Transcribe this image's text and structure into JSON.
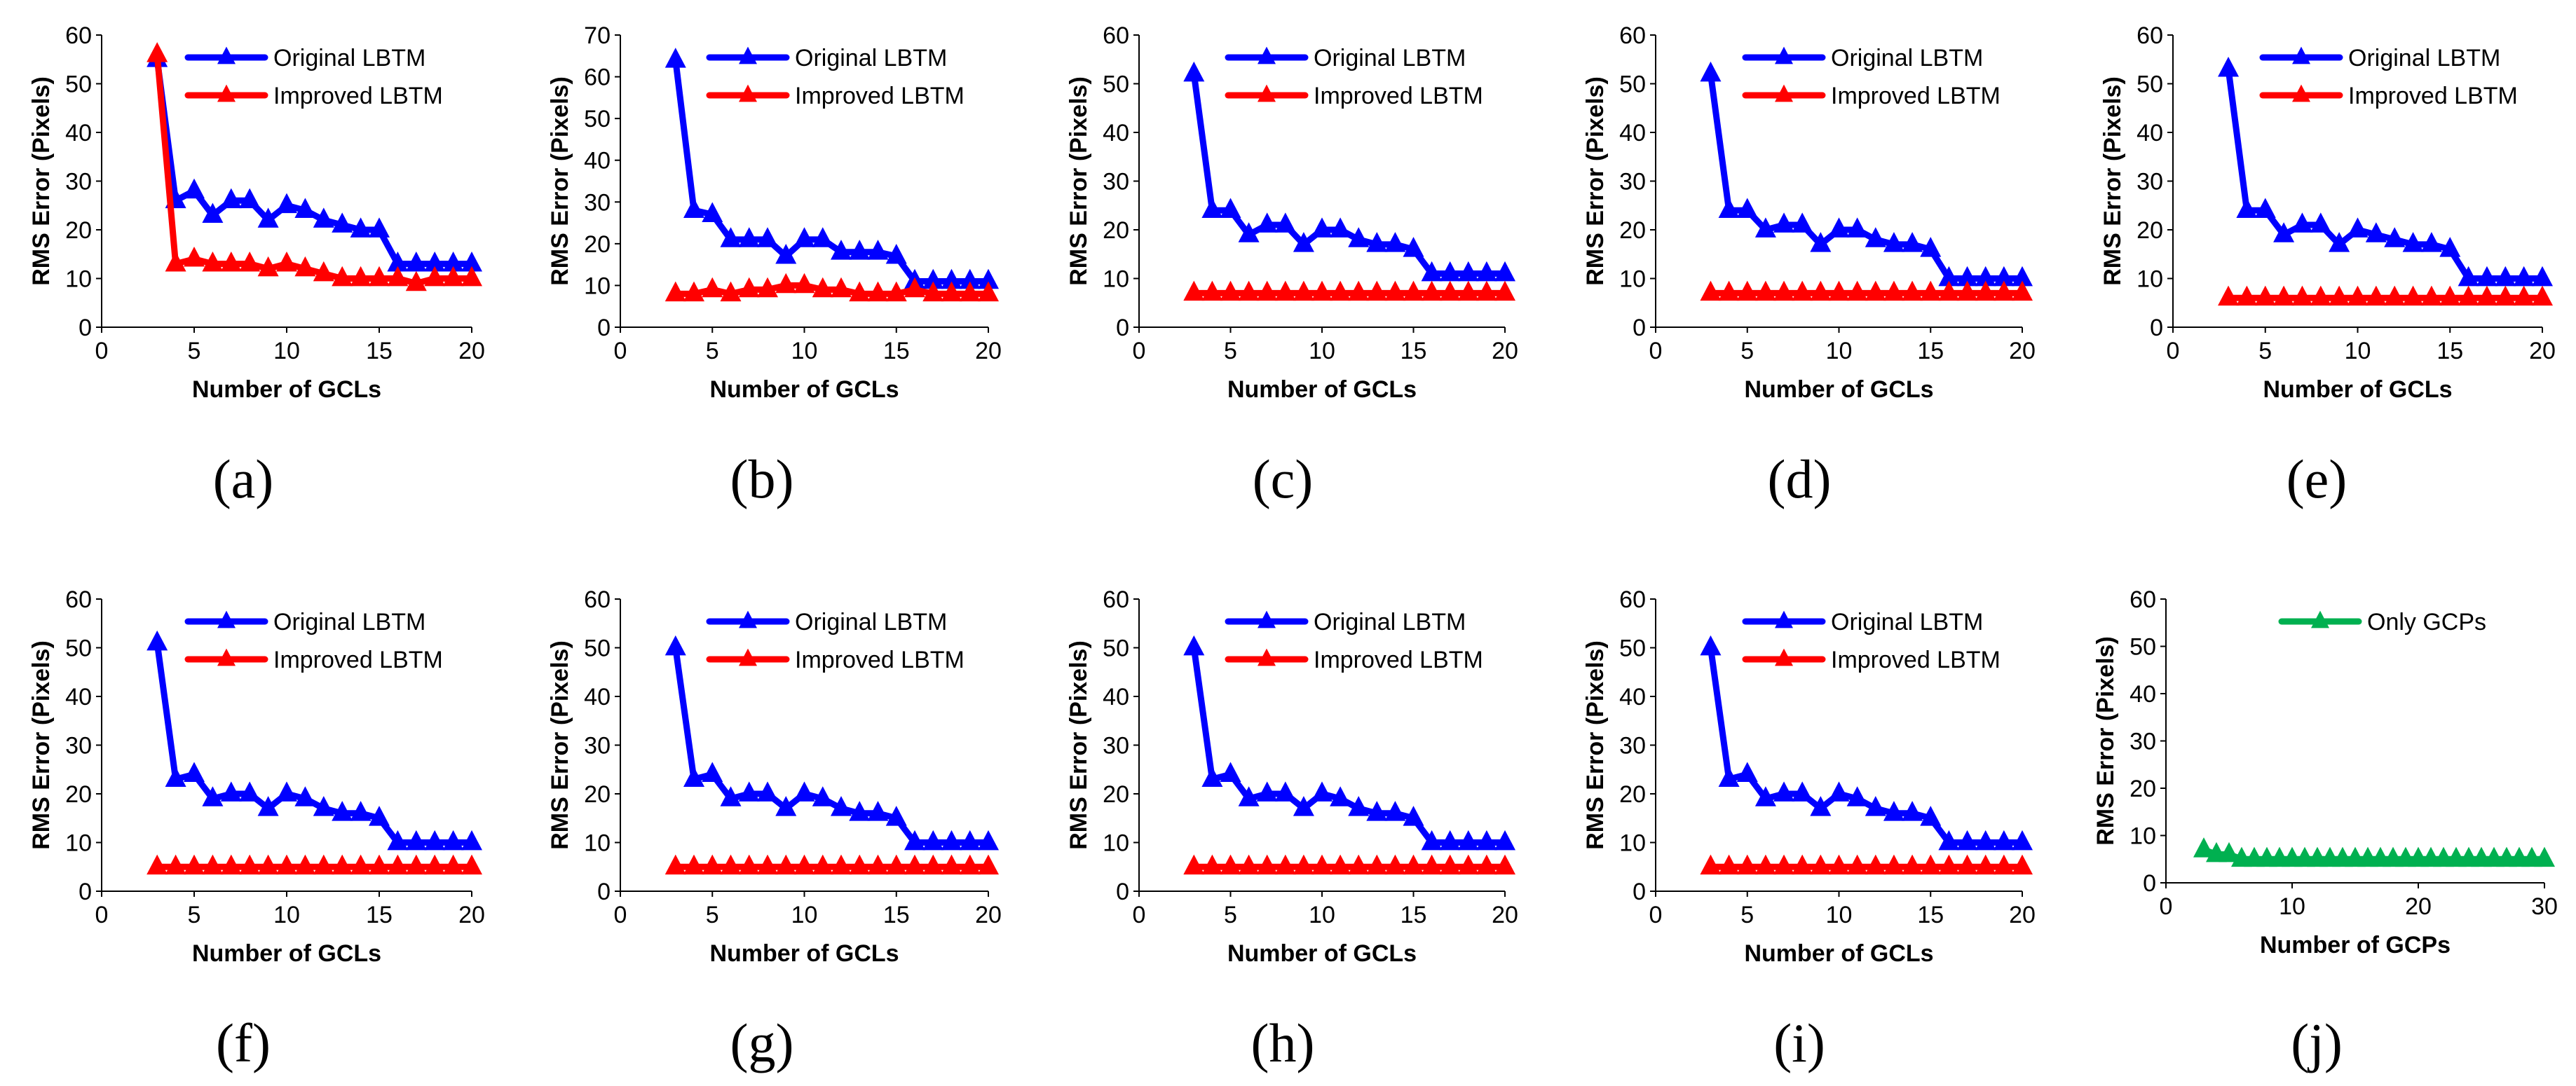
{
  "chart_data": [
    {
      "type": "line",
      "caption": "(a)",
      "xlabel": "Number of GCLs",
      "ylabel": "RMS Error (Pixels)",
      "xlim": [
        0,
        20
      ],
      "xticks": [
        0,
        5,
        10,
        15,
        20
      ],
      "ylim": [
        0,
        60
      ],
      "yticks": [
        0,
        10,
        20,
        30,
        40,
        50,
        60
      ],
      "legend_position": "top-right",
      "series": [
        {
          "name": "Original LBTM",
          "color": "#0000ff",
          "x": [
            3,
            4,
            5,
            6,
            7,
            8,
            9,
            10,
            11,
            12,
            13,
            14,
            15,
            16,
            17,
            18,
            19,
            20
          ],
          "y": [
            55,
            26,
            28,
            23,
            26,
            26,
            22,
            25,
            24,
            22,
            21,
            20,
            20,
            13,
            13,
            13,
            13,
            13
          ]
        },
        {
          "name": "Improved LBTM",
          "color": "#ff0000",
          "x": [
            3,
            4,
            5,
            6,
            7,
            8,
            9,
            10,
            11,
            12,
            13,
            14,
            15,
            16,
            17,
            18,
            19,
            20
          ],
          "y": [
            56,
            13,
            14,
            13,
            13,
            13,
            12,
            13,
            12,
            11,
            10,
            10,
            10,
            10,
            9,
            10,
            10,
            10
          ]
        }
      ]
    },
    {
      "type": "line",
      "caption": "(b)",
      "xlabel": "Number of GCLs",
      "ylabel": "RMS Error (Pixels)",
      "xlim": [
        0,
        20
      ],
      "xticks": [
        0,
        5,
        10,
        15,
        20
      ],
      "ylim": [
        0,
        70
      ],
      "yticks": [
        0,
        10,
        20,
        30,
        40,
        50,
        60,
        70
      ],
      "legend_position": "top-right",
      "series": [
        {
          "name": "Original LBTM",
          "color": "#0000ff",
          "x": [
            3,
            4,
            5,
            6,
            7,
            8,
            9,
            10,
            11,
            12,
            13,
            14,
            15,
            16,
            17,
            18,
            19,
            20
          ],
          "y": [
            64,
            28,
            27,
            21,
            21,
            21,
            17,
            21,
            21,
            18,
            18,
            18,
            17,
            11,
            11,
            11,
            11,
            11
          ]
        },
        {
          "name": "Improved LBTM",
          "color": "#ff0000",
          "x": [
            3,
            4,
            5,
            6,
            7,
            8,
            9,
            10,
            11,
            12,
            13,
            14,
            15,
            16,
            17,
            18,
            19,
            20
          ],
          "y": [
            8,
            8,
            9,
            8,
            9,
            9,
            10,
            10,
            9,
            9,
            8,
            8,
            8,
            9,
            8,
            8,
            8,
            8
          ]
        }
      ]
    },
    {
      "type": "line",
      "caption": "(c)",
      "xlabel": "Number of GCLs",
      "ylabel": "RMS Error (Pixels)",
      "xlim": [
        0,
        20
      ],
      "xticks": [
        0,
        5,
        10,
        15,
        20
      ],
      "ylim": [
        0,
        60
      ],
      "yticks": [
        0,
        10,
        20,
        30,
        40,
        50,
        60
      ],
      "legend_position": "top-right",
      "series": [
        {
          "name": "Original LBTM",
          "color": "#0000ff",
          "x": [
            3,
            4,
            5,
            6,
            7,
            8,
            9,
            10,
            11,
            12,
            13,
            14,
            15,
            16,
            17,
            18,
            19,
            20
          ],
          "y": [
            52,
            24,
            24,
            19,
            21,
            21,
            17,
            20,
            20,
            18,
            17,
            17,
            16,
            11,
            11,
            11,
            11,
            11
          ]
        },
        {
          "name": "Improved LBTM",
          "color": "#ff0000",
          "x": [
            3,
            4,
            5,
            6,
            7,
            8,
            9,
            10,
            11,
            12,
            13,
            14,
            15,
            16,
            17,
            18,
            19,
            20
          ],
          "y": [
            7,
            7,
            7,
            7,
            7,
            7,
            7,
            7,
            7,
            7,
            7,
            7,
            7,
            7,
            7,
            7,
            7,
            7
          ]
        }
      ]
    },
    {
      "type": "line",
      "caption": "(d)",
      "xlabel": "Number of GCLs",
      "ylabel": "RMS Error (Pixels)",
      "xlim": [
        0,
        20
      ],
      "xticks": [
        0,
        5,
        10,
        15,
        20
      ],
      "ylim": [
        0,
        60
      ],
      "yticks": [
        0,
        10,
        20,
        30,
        40,
        50,
        60
      ],
      "legend_position": "top-right",
      "series": [
        {
          "name": "Original LBTM",
          "color": "#0000ff",
          "x": [
            3,
            4,
            5,
            6,
            7,
            8,
            9,
            10,
            11,
            12,
            13,
            14,
            15,
            16,
            17,
            18,
            19,
            20
          ],
          "y": [
            52,
            24,
            24,
            20,
            21,
            21,
            17,
            20,
            20,
            18,
            17,
            17,
            16,
            10,
            10,
            10,
            10,
            10
          ]
        },
        {
          "name": "Improved LBTM",
          "color": "#ff0000",
          "x": [
            3,
            4,
            5,
            6,
            7,
            8,
            9,
            10,
            11,
            12,
            13,
            14,
            15,
            16,
            17,
            18,
            19,
            20
          ],
          "y": [
            7,
            7,
            7,
            7,
            7,
            7,
            7,
            7,
            7,
            7,
            7,
            7,
            7,
            7,
            7,
            7,
            7,
            7
          ]
        }
      ]
    },
    {
      "type": "line",
      "caption": "(e)",
      "xlabel": "Number of GCLs",
      "ylabel": "RMS Error (Pixels)",
      "xlim": [
        0,
        20
      ],
      "xticks": [
        0,
        5,
        10,
        15,
        20
      ],
      "ylim": [
        0,
        60
      ],
      "yticks": [
        0,
        10,
        20,
        30,
        40,
        50,
        60
      ],
      "legend_position": "top-right",
      "series": [
        {
          "name": "Original LBTM",
          "color": "#0000ff",
          "x": [
            3,
            4,
            5,
            6,
            7,
            8,
            9,
            10,
            11,
            12,
            13,
            14,
            15,
            16,
            17,
            18,
            19,
            20
          ],
          "y": [
            53,
            24,
            24,
            19,
            21,
            21,
            17,
            20,
            19,
            18,
            17,
            17,
            16,
            10,
            10,
            10,
            10,
            10
          ]
        },
        {
          "name": "Improved LBTM",
          "color": "#ff0000",
          "x": [
            3,
            4,
            5,
            6,
            7,
            8,
            9,
            10,
            11,
            12,
            13,
            14,
            15,
            16,
            17,
            18,
            19,
            20
          ],
          "y": [
            6,
            6,
            6,
            6,
            6,
            6,
            6,
            6,
            6,
            6,
            6,
            6,
            6,
            6,
            6,
            6,
            6,
            6
          ]
        }
      ]
    },
    {
      "type": "line",
      "caption": "(f)",
      "xlabel": "Number of GCLs",
      "ylabel": "RMS Error (Pixels)",
      "xlim": [
        0,
        20
      ],
      "xticks": [
        0,
        5,
        10,
        15,
        20
      ],
      "ylim": [
        0,
        60
      ],
      "yticks": [
        0,
        10,
        20,
        30,
        40,
        50,
        60
      ],
      "legend_position": "top-right",
      "series": [
        {
          "name": "Original LBTM",
          "color": "#0000ff",
          "x": [
            3,
            4,
            5,
            6,
            7,
            8,
            9,
            10,
            11,
            12,
            13,
            14,
            15,
            16,
            17,
            18,
            19,
            20
          ],
          "y": [
            51,
            23,
            24,
            19,
            20,
            20,
            17,
            20,
            19,
            17,
            16,
            16,
            15,
            10,
            10,
            10,
            10,
            10
          ]
        },
        {
          "name": "Improved LBTM",
          "color": "#ff0000",
          "x": [
            3,
            4,
            5,
            6,
            7,
            8,
            9,
            10,
            11,
            12,
            13,
            14,
            15,
            16,
            17,
            18,
            19,
            20
          ],
          "y": [
            5,
            5,
            5,
            5,
            5,
            5,
            5,
            5,
            5,
            5,
            5,
            5,
            5,
            5,
            5,
            5,
            5,
            5
          ]
        }
      ]
    },
    {
      "type": "line",
      "caption": "(g)",
      "xlabel": "Number of GCLs",
      "ylabel": "RMS Error (Pixels)",
      "xlim": [
        0,
        20
      ],
      "xticks": [
        0,
        5,
        10,
        15,
        20
      ],
      "ylim": [
        0,
        60
      ],
      "yticks": [
        0,
        10,
        20,
        30,
        40,
        50,
        60
      ],
      "legend_position": "top-right",
      "series": [
        {
          "name": "Original LBTM",
          "color": "#0000ff",
          "x": [
            3,
            4,
            5,
            6,
            7,
            8,
            9,
            10,
            11,
            12,
            13,
            14,
            15,
            16,
            17,
            18,
            19,
            20
          ],
          "y": [
            50,
            23,
            24,
            19,
            20,
            20,
            17,
            20,
            19,
            17,
            16,
            16,
            15,
            10,
            10,
            10,
            10,
            10
          ]
        },
        {
          "name": "Improved LBTM",
          "color": "#ff0000",
          "x": [
            3,
            4,
            5,
            6,
            7,
            8,
            9,
            10,
            11,
            12,
            13,
            14,
            15,
            16,
            17,
            18,
            19,
            20
          ],
          "y": [
            5,
            5,
            5,
            5,
            5,
            5,
            5,
            5,
            5,
            5,
            5,
            5,
            5,
            5,
            5,
            5,
            5,
            5
          ]
        }
      ]
    },
    {
      "type": "line",
      "caption": "(h)",
      "xlabel": "Number of GCLs",
      "ylabel": "RMS Error (Pixels)",
      "xlim": [
        0,
        20
      ],
      "xticks": [
        0,
        5,
        10,
        15,
        20
      ],
      "ylim": [
        0,
        60
      ],
      "yticks": [
        0,
        10,
        20,
        30,
        40,
        50,
        60
      ],
      "legend_position": "top-right",
      "series": [
        {
          "name": "Original LBTM",
          "color": "#0000ff",
          "x": [
            3,
            4,
            5,
            6,
            7,
            8,
            9,
            10,
            11,
            12,
            13,
            14,
            15,
            16,
            17,
            18,
            19,
            20
          ],
          "y": [
            50,
            23,
            24,
            19,
            20,
            20,
            17,
            20,
            19,
            17,
            16,
            16,
            15,
            10,
            10,
            10,
            10,
            10
          ]
        },
        {
          "name": "Improved LBTM",
          "color": "#ff0000",
          "x": [
            3,
            4,
            5,
            6,
            7,
            8,
            9,
            10,
            11,
            12,
            13,
            14,
            15,
            16,
            17,
            18,
            19,
            20
          ],
          "y": [
            5,
            5,
            5,
            5,
            5,
            5,
            5,
            5,
            5,
            5,
            5,
            5,
            5,
            5,
            5,
            5,
            5,
            5
          ]
        }
      ]
    },
    {
      "type": "line",
      "caption": "(i)",
      "xlabel": "Number of GCLs",
      "ylabel": "RMS Error (Pixels)",
      "xlim": [
        0,
        20
      ],
      "xticks": [
        0,
        5,
        10,
        15,
        20
      ],
      "ylim": [
        0,
        60
      ],
      "yticks": [
        0,
        10,
        20,
        30,
        40,
        50,
        60
      ],
      "legend_position": "top-right",
      "series": [
        {
          "name": "Original LBTM",
          "color": "#0000ff",
          "x": [
            3,
            4,
            5,
            6,
            7,
            8,
            9,
            10,
            11,
            12,
            13,
            14,
            15,
            16,
            17,
            18,
            19,
            20
          ],
          "y": [
            50,
            23,
            24,
            19,
            20,
            20,
            17,
            20,
            19,
            17,
            16,
            16,
            15,
            10,
            10,
            10,
            10,
            10
          ]
        },
        {
          "name": "Improved LBTM",
          "color": "#ff0000",
          "x": [
            3,
            4,
            5,
            6,
            7,
            8,
            9,
            10,
            11,
            12,
            13,
            14,
            15,
            16,
            17,
            18,
            19,
            20
          ],
          "y": [
            5,
            5,
            5,
            5,
            5,
            5,
            5,
            5,
            5,
            5,
            5,
            5,
            5,
            5,
            5,
            5,
            5,
            5
          ]
        }
      ]
    },
    {
      "type": "line",
      "caption": "(j)",
      "xlabel": "Number of GCPs",
      "ylabel": "RMS Error (Pixels)",
      "xlim": [
        0,
        30
      ],
      "xticks": [
        0,
        10,
        20,
        30
      ],
      "ylim": [
        0,
        60
      ],
      "yticks": [
        0,
        10,
        20,
        30,
        40,
        50,
        60
      ],
      "legend_position": "top-center",
      "series": [
        {
          "name": "Only GCPs",
          "color": "#00b050",
          "x": [
            3,
            4,
            5,
            6,
            7,
            8,
            9,
            10,
            11,
            12,
            13,
            14,
            15,
            16,
            17,
            18,
            19,
            20,
            21,
            22,
            23,
            24,
            25,
            26,
            27,
            28,
            29,
            30
          ],
          "y": [
            7,
            6,
            6,
            5,
            5,
            5,
            5,
            5,
            5,
            5,
            5,
            5,
            5,
            5,
            5,
            5,
            5,
            5,
            5,
            5,
            5,
            5,
            5,
            5,
            5,
            5,
            5,
            5
          ]
        }
      ]
    }
  ]
}
